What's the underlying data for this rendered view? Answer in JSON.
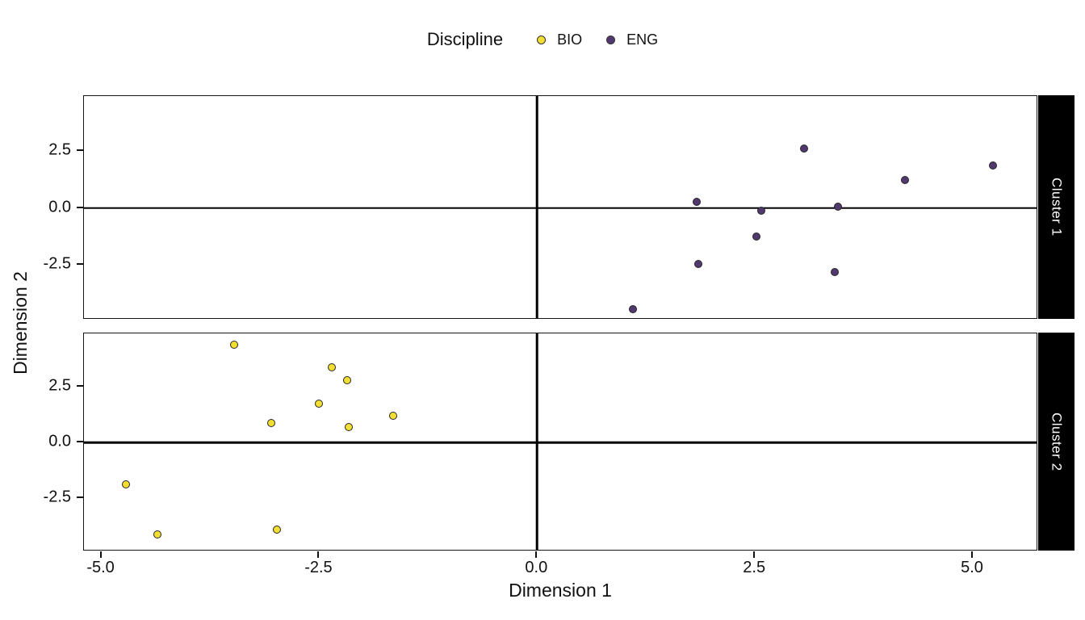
{
  "legend": {
    "title": "Discipline",
    "items": [
      {
        "label": "BIO",
        "color": "#f2df31"
      },
      {
        "label": "ENG",
        "color": "#51386e"
      }
    ]
  },
  "axes": {
    "x_title": "Dimension 1",
    "y_title": "Dimension 2"
  },
  "chart_data": {
    "type": "scatter",
    "legend_title": "Discipline",
    "xlabel": "Dimension 1",
    "ylabel": "Dimension 2",
    "xlim": [
      -5.2,
      5.75
    ],
    "ylim": [
      -4.9,
      4.9
    ],
    "x_ticks": [
      -5.0,
      -2.5,
      0.0,
      2.5,
      5.0
    ],
    "x_tick_labels": [
      "-5.0",
      "-2.5",
      "0.0",
      "2.5",
      "5.0"
    ],
    "y_ticks": [
      2.5,
      0.0,
      -2.5
    ],
    "y_tick_labels": [
      "2.5",
      "0.0",
      "-2.5"
    ],
    "grid": false,
    "legend_position": "top-center",
    "reference_lines": {
      "h": 0,
      "v": 0
    },
    "facets": [
      {
        "label": "Cluster 1",
        "series": [
          {
            "name": "ENG",
            "color": "#51386e",
            "points": [
              [
                1.1,
                -4.44
              ],
              [
                1.83,
                0.25
              ],
              [
                1.85,
                -2.45
              ],
              [
                2.52,
                -1.25
              ],
              [
                2.57,
                -0.14
              ],
              [
                3.06,
                2.6
              ],
              [
                3.42,
                -2.81
              ],
              [
                3.45,
                0.07
              ],
              [
                4.22,
                1.22
              ],
              [
                5.23,
                1.87
              ]
            ]
          }
        ]
      },
      {
        "label": "Cluster 2",
        "series": [
          {
            "name": "BIO",
            "color": "#f2df31",
            "points": [
              [
                -4.72,
                -1.87
              ],
              [
                -4.36,
                -4.14
              ],
              [
                -3.48,
                4.38
              ],
              [
                -3.05,
                0.86
              ],
              [
                -2.99,
                -3.93
              ],
              [
                -2.5,
                1.76
              ],
              [
                -2.36,
                3.37
              ],
              [
                -2.18,
                2.78
              ],
              [
                -2.16,
                0.69
              ],
              [
                -1.65,
                1.19
              ]
            ]
          }
        ]
      }
    ]
  },
  "colors": {
    "background": "#ffffff",
    "strip_background": "#000000",
    "strip_text": "#ffffff",
    "point_stroke": "#262626",
    "axis_text": "#111111"
  }
}
